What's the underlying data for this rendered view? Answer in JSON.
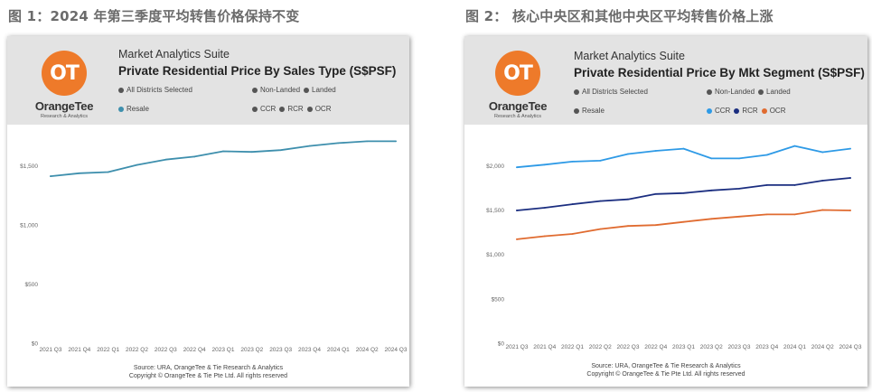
{
  "figures": [
    {
      "caption": "图 1：2024 年第三季度平均转售价格保持不变",
      "logo": {
        "mark": "OT",
        "name": "OrangeTee",
        "sub": "Research & Analytics"
      },
      "suite": "Market Analytics Suite",
      "title": "Private Residential Price By Sales Type (S$PSF)",
      "slicers": {
        "districts": "All Districts Selected",
        "property_types": [
          "Non-Landed",
          "Landed"
        ],
        "sale_types": [
          "Resale"
        ],
        "segments": [
          "CCR",
          "RCR",
          "OCR"
        ]
      },
      "source": "Source: URA, OrangeTee & Tie Research & Analytics",
      "copyright": "Copyright © OrangeTee & Tie Pte Ltd. All rights reserved",
      "colors": {
        "Resale": "#3e8fad",
        "legend_active": "#3e8fad",
        "legend_inactive": "#555555"
      }
    },
    {
      "caption": "图 2： 核心中央区和其他中央区平均转售价格上涨",
      "logo": {
        "mark": "OT",
        "name": "OrangeTee",
        "sub": "Research & Analytics"
      },
      "suite": "Market Analytics Suite",
      "title": "Private Residential Price By Mkt Segment (S$PSF)",
      "slicers": {
        "districts": "All Districts Selected",
        "property_types": [
          "Non-Landed",
          "Landed"
        ],
        "sale_types": [
          "Resale"
        ],
        "segments": [
          "CCR",
          "RCR",
          "OCR"
        ]
      },
      "source": "Source: URA, OrangeTee & Tie Research & Analytics",
      "copyright": "Copyright © OrangeTee & Tie Pte Ltd. All rights reserved",
      "colors": {
        "CCR": "#2e9ae6",
        "RCR": "#1b2e80",
        "OCR": "#e06b30",
        "legend_inactive": "#555555"
      }
    }
  ],
  "chart_data": [
    {
      "type": "line",
      "categories": [
        "2021 Q3",
        "2021 Q4",
        "2022 Q1",
        "2022 Q2",
        "2022 Q3",
        "2022 Q4",
        "2023 Q1",
        "2023 Q2",
        "2023 Q3",
        "2023 Q4",
        "2024 Q1",
        "2024 Q2",
        "2024 Q3"
      ],
      "series": [
        {
          "name": "Resale",
          "color": "#3e8fad",
          "values": [
            1410,
            1435,
            1445,
            1505,
            1550,
            1575,
            1620,
            1615,
            1630,
            1665,
            1690,
            1705,
            1705
          ]
        }
      ],
      "ylim": [
        0,
        1830
      ],
      "yticks": [
        0,
        500,
        1000,
        1500
      ],
      "ytick_labels": [
        "$0",
        "$500",
        "$1,000",
        "$1,500"
      ],
      "grid": false,
      "legend": "none"
    },
    {
      "type": "line",
      "categories": [
        "2021 Q3",
        "2021 Q4",
        "2022 Q1",
        "2022 Q2",
        "2022 Q3",
        "2022 Q4",
        "2023 Q1",
        "2023 Q2",
        "2023 Q3",
        "2023 Q4",
        "2024 Q1",
        "2024 Q2",
        "2024 Q3"
      ],
      "series": [
        {
          "name": "CCR",
          "color": "#2e9ae6",
          "values": [
            1980,
            2010,
            2045,
            2055,
            2130,
            2165,
            2190,
            2080,
            2080,
            2120,
            2220,
            2150,
            2190
          ]
        },
        {
          "name": "RCR",
          "color": "#1b2e80",
          "values": [
            1495,
            1525,
            1565,
            1600,
            1620,
            1680,
            1690,
            1720,
            1740,
            1780,
            1780,
            1830,
            1860
          ]
        },
        {
          "name": "OCR",
          "color": "#e06b30",
          "values": [
            1170,
            1205,
            1230,
            1285,
            1320,
            1330,
            1365,
            1400,
            1425,
            1450,
            1450,
            1500,
            1495
          ]
        }
      ],
      "ylim": [
        0,
        2440
      ],
      "yticks": [
        0,
        500,
        1000,
        1500,
        2000
      ],
      "ytick_labels": [
        "$0",
        "$500",
        "$1,000",
        "$1,500",
        "$2,000"
      ],
      "grid": false,
      "legend": "top"
    }
  ]
}
